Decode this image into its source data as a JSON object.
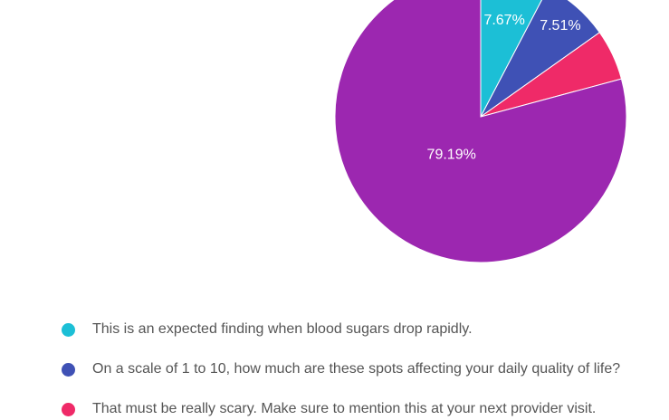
{
  "chart_data": {
    "type": "pie",
    "slices": [
      {
        "label": "This is an expected finding when blood sugars drop rapidly.",
        "value": 7.67,
        "value_label": "7.67%",
        "color": "#1cbfd6"
      },
      {
        "label": "On a scale of 1 to 10, how much are these spots affecting your daily quality of life?",
        "value": 7.51,
        "value_label": "7.51%",
        "color": "#3f51b5"
      },
      {
        "label": "That must be really scary. Make sure to mention this at your next provider visit.",
        "value": 5.63,
        "value_label": "",
        "color": "#ef2a68"
      },
      {
        "label": "",
        "value": 79.19,
        "value_label": "79.19%",
        "color": "#9c27b0"
      }
    ],
    "legend_position": "bottom"
  }
}
